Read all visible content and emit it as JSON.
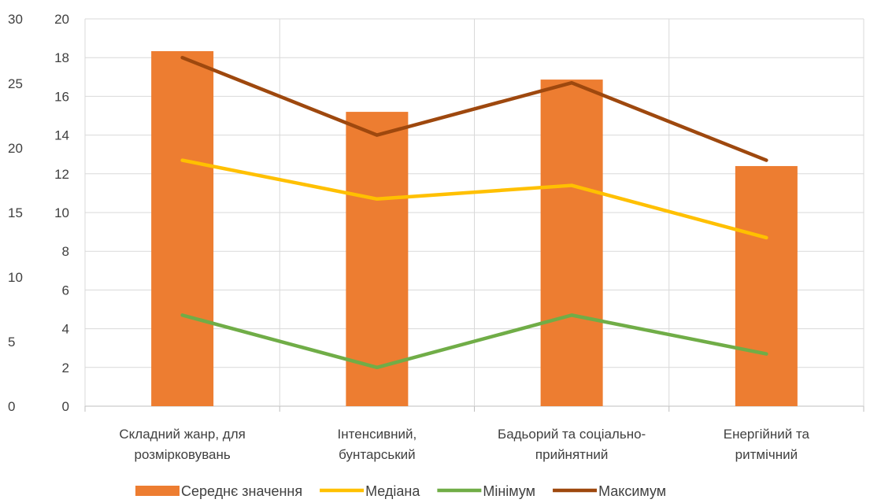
{
  "chart_data": {
    "type": "bar",
    "categories": [
      [
        "Складний жанр, для",
        "розмірковувань"
      ],
      [
        "Інтенсивний,",
        "бунтарський"
      ],
      [
        "Бадьорий та соціально-",
        "прийнятний"
      ],
      [
        "Енергійний та",
        "ритмічний"
      ]
    ],
    "y_left": {
      "ylim": [
        0,
        30
      ],
      "ticks": [
        "0",
        "5",
        "10",
        "15",
        "20",
        "25",
        "30"
      ]
    },
    "y_right": {
      "ylim": [
        0,
        20
      ],
      "ticks": [
        "0",
        "2",
        "4",
        "6",
        "8",
        "10",
        "12",
        "14",
        "16",
        "18",
        "20"
      ]
    },
    "grid": true,
    "legend_position": "bottom",
    "series": [
      {
        "name": "Середнє значення",
        "type": "bar",
        "axis": "left",
        "color": "#ED7D31",
        "values": [
          27.5,
          22.8,
          25.3,
          18.6
        ]
      },
      {
        "name": "Медіана",
        "type": "line",
        "axis": "right",
        "color": "#FFC000",
        "values": [
          12.7,
          10.7,
          11.4,
          8.7
        ]
      },
      {
        "name": "Мінімум",
        "type": "line",
        "axis": "right",
        "color": "#70AD47",
        "values": [
          4.7,
          2.0,
          4.7,
          2.7
        ]
      },
      {
        "name": "Максимум",
        "type": "line",
        "axis": "right",
        "color": "#9E480E",
        "values": [
          18.0,
          14.0,
          16.7,
          12.7
        ]
      }
    ]
  }
}
